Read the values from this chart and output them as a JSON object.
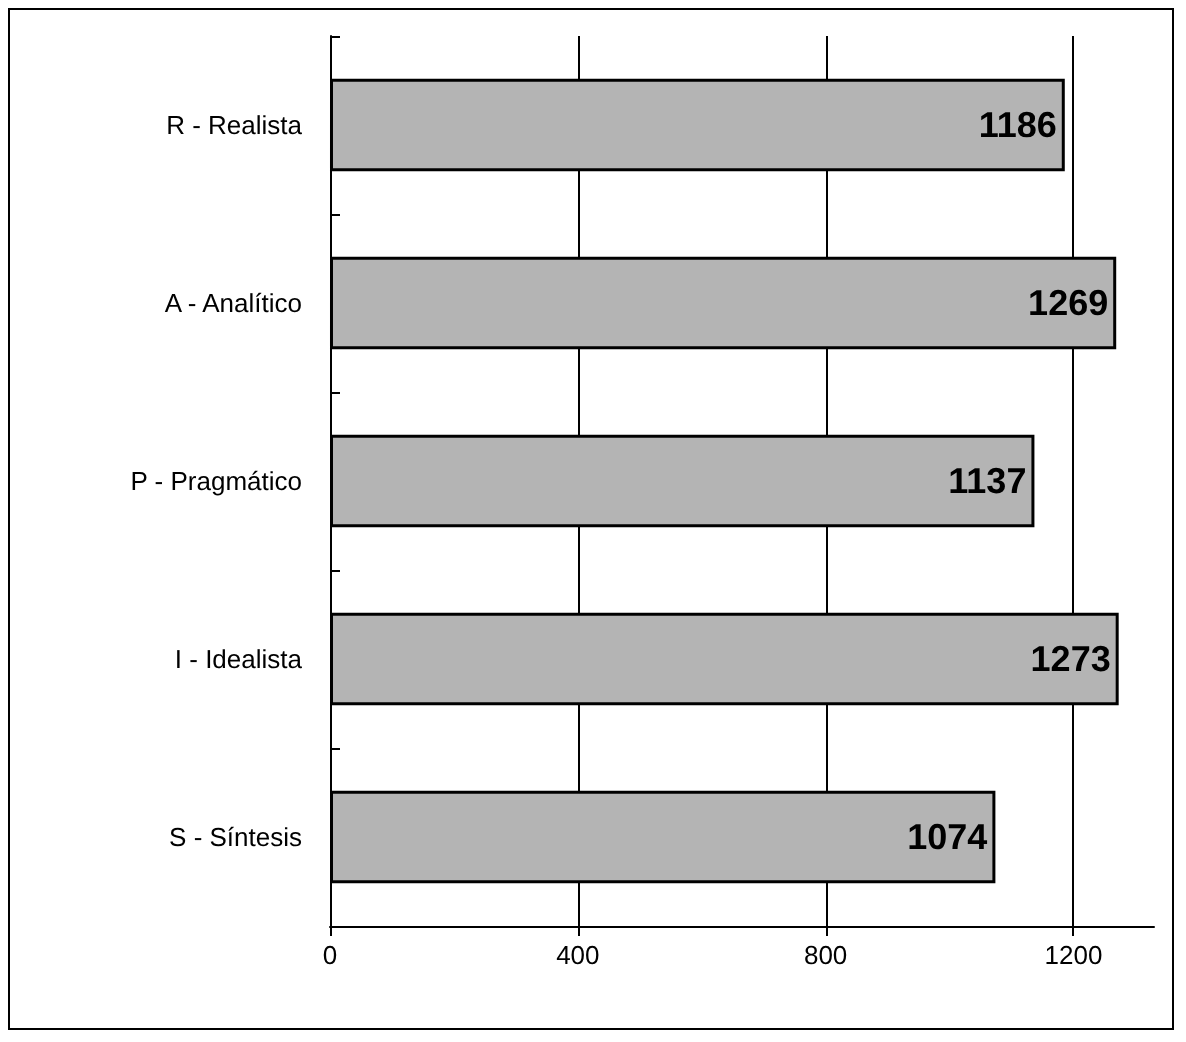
{
  "chart_data": {
    "type": "bar",
    "orientation": "horizontal",
    "categories": [
      "R - Realista",
      "A - Analítico",
      "P - Pragmático",
      "I - Idealista",
      "S - Síntesis"
    ],
    "values": [
      1186,
      1269,
      1137,
      1273,
      1074
    ],
    "color": "#b4b4b4",
    "data_labels": true,
    "xlim": [
      0,
      1330
    ],
    "xticks": [
      0,
      400,
      800,
      1200
    ],
    "grid": "x"
  }
}
